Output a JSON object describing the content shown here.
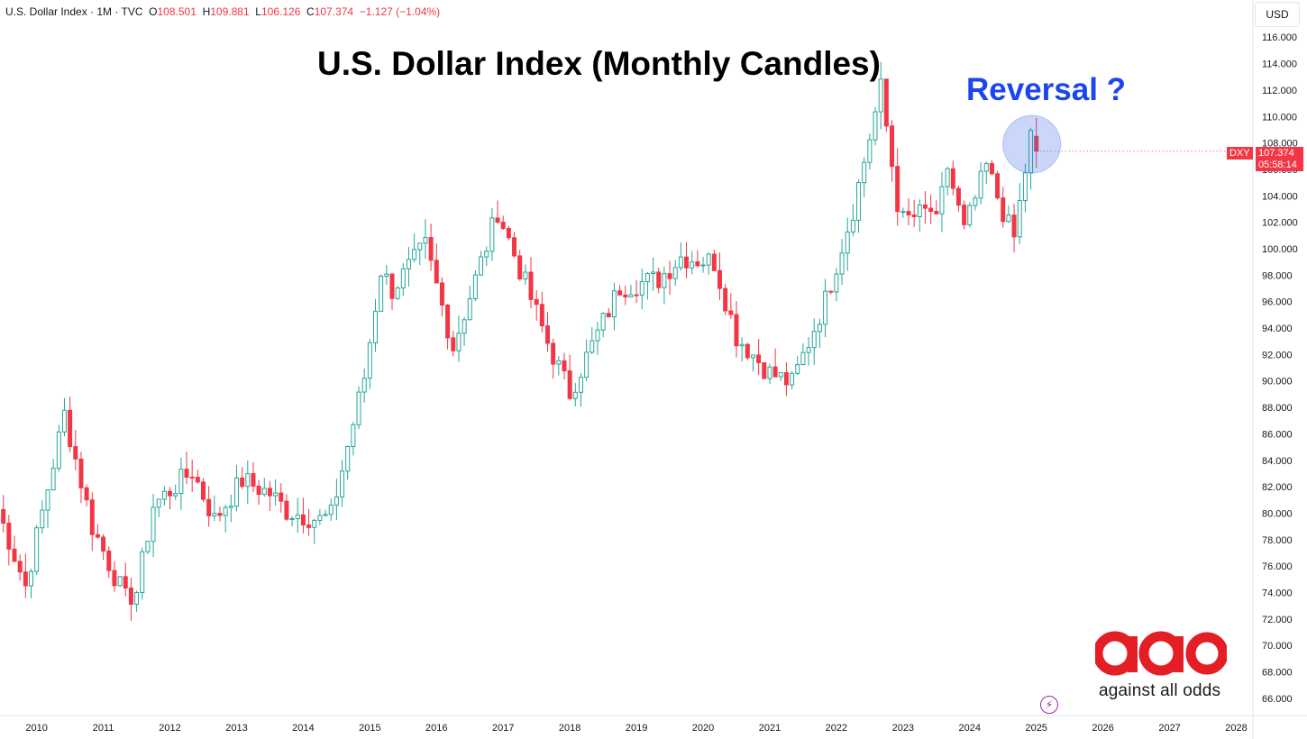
{
  "header": {
    "symbol": "U.S. Dollar Index · 1M · TVC",
    "open_label": "O",
    "open": "108.501",
    "high_label": "H",
    "high": "109.881",
    "low_label": "L",
    "low": "106.126",
    "close_label": "C",
    "close": "107.374",
    "change": "−1.127 (−1.04%)"
  },
  "currency_button": "USD",
  "price_tag": {
    "ticker": "DXY",
    "price": "107.374",
    "countdown": "05:58:14"
  },
  "annotation": "Reversal ?",
  "logo": {
    "text": "against all odds"
  },
  "colors": {
    "up": "#26a69a",
    "down": "#f23645",
    "highlight": "#1b45f0"
  },
  "chart_data": {
    "type": "candlestick",
    "title": "U.S. Dollar Index (Monthly Candles)",
    "xlabel": "",
    "ylabel": "",
    "ylim": [
      64.7,
      116.9
    ],
    "xlim": [
      2009.45,
      2028.25
    ],
    "y_ticks": [
      "66.000",
      "68.000",
      "70.000",
      "72.000",
      "74.000",
      "76.000",
      "78.000",
      "80.000",
      "82.000",
      "84.000",
      "86.000",
      "88.000",
      "90.000",
      "92.000",
      "94.000",
      "96.000",
      "98.000",
      "100.000",
      "102.000",
      "104.000",
      "106.000",
      "108.000",
      "110.000",
      "112.000",
      "114.000",
      "116.000"
    ],
    "x_ticks": [
      "2010",
      "2011",
      "2012",
      "2013",
      "2014",
      "2015",
      "2016",
      "2017",
      "2018",
      "2019",
      "2020",
      "2021",
      "2022",
      "2023",
      "2024",
      "2025",
      "2026",
      "2027",
      "2028"
    ],
    "anchors": [
      [
        "2009-06",
        80.3
      ],
      [
        "2009-11",
        74.5
      ],
      [
        "2010-06",
        87.5
      ],
      [
        "2010-11",
        79.0
      ],
      [
        "2011-05",
        73.5
      ],
      [
        "2011-07",
        74.1
      ],
      [
        "2011-10",
        80.6
      ],
      [
        "2012-05",
        83.2
      ],
      [
        "2012-09",
        79.5
      ],
      [
        "2013-02",
        82.5
      ],
      [
        "2013-07",
        81.5
      ],
      [
        "2013-10",
        80.2
      ],
      [
        "2014-04",
        79.5
      ],
      [
        "2014-06",
        79.8
      ],
      [
        "2014-12",
        90.3
      ],
      [
        "2015-03",
        98.4
      ],
      [
        "2015-05",
        96.9
      ],
      [
        "2015-11",
        100.2
      ],
      [
        "2016-04",
        92.6
      ],
      [
        "2016-11",
        101.5
      ],
      [
        "2016-12",
        102.9
      ],
      [
        "2017-09",
        92.9
      ],
      [
        "2018-01",
        89.1
      ],
      [
        "2018-04",
        91.8
      ],
      [
        "2018-10",
        97.1
      ],
      [
        "2019-05",
        97.7
      ],
      [
        "2019-09",
        99.4
      ],
      [
        "2020-03",
        99.0
      ],
      [
        "2020-07",
        93.4
      ],
      [
        "2021-01",
        90.6
      ],
      [
        "2021-05",
        89.8
      ],
      [
        "2021-11",
        96.1
      ],
      [
        "2022-04",
        103.0
      ],
      [
        "2022-09",
        112.1
      ],
      [
        "2022-12",
        103.5
      ],
      [
        "2023-01",
        102.1
      ],
      [
        "2023-06",
        102.9
      ],
      [
        "2023-07",
        101.8
      ],
      [
        "2023-09",
        106.2
      ],
      [
        "2023-12",
        101.3
      ],
      [
        "2024-04",
        106.2
      ],
      [
        "2024-08",
        101.7
      ],
      [
        "2024-09",
        100.8
      ],
      [
        "2024-12",
        108.5
      ],
      [
        "2025-01",
        107.374
      ]
    ],
    "last_candle": {
      "date": "2025-01",
      "open": 108.501,
      "high": 109.881,
      "low": 106.126,
      "close": 107.374
    }
  }
}
